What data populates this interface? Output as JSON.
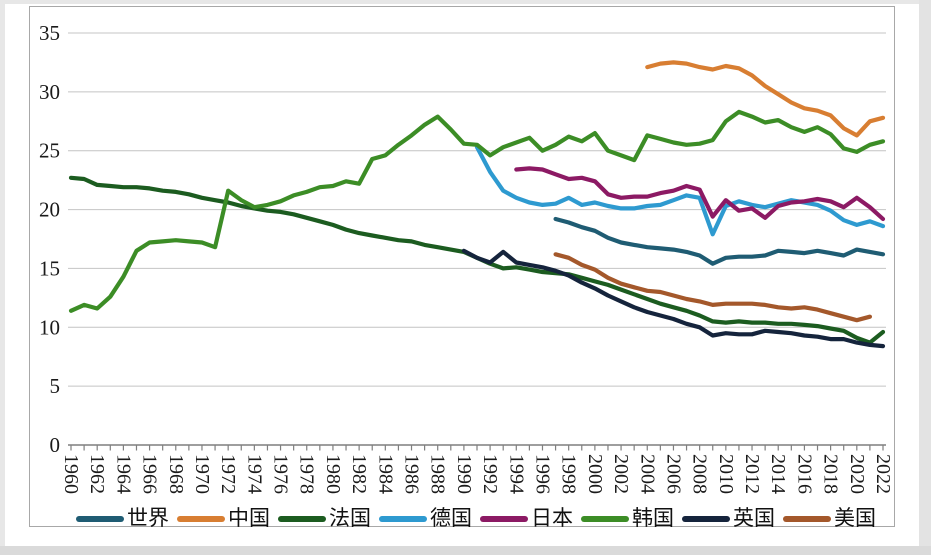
{
  "chart_data": {
    "type": "line",
    "title": "",
    "xlabel": "",
    "ylabel": "",
    "ylim": [
      0,
      35
    ],
    "ytick_step": 5,
    "yticks": [
      0,
      5,
      10,
      15,
      20,
      25,
      30,
      35
    ],
    "x_range": [
      1960,
      2022
    ],
    "xtick_labels": [
      "1960",
      "1962",
      "1964",
      "1966",
      "1968",
      "1970",
      "1972",
      "1974",
      "1976",
      "1978",
      "1980",
      "1982",
      "1984",
      "1986",
      "1988",
      "1990",
      "1992",
      "1994",
      "1996",
      "1998",
      "2000",
      "2002",
      "2004",
      "2006",
      "2008",
      "2010",
      "2012",
      "2014",
      "2016",
      "2018",
      "2020",
      "2022"
    ],
    "grid": "horizontal",
    "legend_position": "bottom",
    "colors": {
      "axis": "#7f7f7f",
      "gridline": "#c4c4c4",
      "tick_text": "#1a1a1a",
      "frame_border": "#a8a8a8"
    },
    "series": [
      {
        "id": "world",
        "name": "世界",
        "color": "#1F5C73",
        "start_year": 1997,
        "values": [
          19.2,
          18.9,
          18.5,
          18.2,
          17.6,
          17.2,
          17.0,
          16.8,
          16.7,
          16.6,
          16.4,
          16.1,
          15.4,
          15.9,
          16.0,
          16.0,
          16.1,
          16.5,
          16.4,
          16.3,
          16.5,
          16.3,
          16.1,
          16.6,
          16.4,
          16.2
        ]
      },
      {
        "id": "china",
        "name": "中国",
        "color": "#D87E32",
        "start_year": 2004,
        "values": [
          32.1,
          32.4,
          32.5,
          32.4,
          32.1,
          31.9,
          32.2,
          32.0,
          31.4,
          30.5,
          29.8,
          29.1,
          28.6,
          28.4,
          28.0,
          26.9,
          26.3,
          27.5,
          27.8
        ]
      },
      {
        "id": "france",
        "name": "法国",
        "color": "#1C5C20",
        "start_year": 1960,
        "values": [
          22.7,
          22.6,
          22.1,
          22.0,
          21.9,
          21.9,
          21.8,
          21.6,
          21.5,
          21.3,
          21.0,
          20.8,
          20.6,
          20.3,
          20.1,
          19.9,
          19.8,
          19.6,
          19.3,
          19.0,
          18.7,
          18.3,
          18.0,
          17.8,
          17.6,
          17.4,
          17.3,
          17.0,
          16.8,
          16.6,
          16.4,
          15.9,
          15.4,
          15.0,
          15.1,
          14.9,
          14.7,
          14.6,
          14.5,
          14.2,
          13.9,
          13.6,
          13.2,
          12.8,
          12.4,
          12.0,
          11.7,
          11.4,
          11.0,
          10.5,
          10.4,
          10.5,
          10.4,
          10.4,
          10.3,
          10.3,
          10.2,
          10.1,
          9.9,
          9.7,
          9.1,
          8.7,
          9.6
        ]
      },
      {
        "id": "germany",
        "name": "德国",
        "color": "#2E9AD0",
        "start_year": 1991,
        "values": [
          25.3,
          23.2,
          21.6,
          21.0,
          20.6,
          20.4,
          20.5,
          21.0,
          20.4,
          20.6,
          20.3,
          20.1,
          20.1,
          20.3,
          20.4,
          20.8,
          21.2,
          21.0,
          17.9,
          20.3,
          20.7,
          20.4,
          20.2,
          20.5,
          20.8,
          20.6,
          20.4,
          19.9,
          19.1,
          18.7,
          19.0,
          18.6
        ]
      },
      {
        "id": "japan",
        "name": "日本",
        "color": "#8C1A64",
        "start_year": 1994,
        "values": [
          23.4,
          23.5,
          23.4,
          23.0,
          22.6,
          22.7,
          22.4,
          21.3,
          21.0,
          21.1,
          21.1,
          21.4,
          21.6,
          22.0,
          21.7,
          19.4,
          20.8,
          19.9,
          20.1,
          19.3,
          20.3,
          20.6,
          20.7,
          20.9,
          20.7,
          20.2,
          21.0,
          20.2,
          19.2
        ]
      },
      {
        "id": "korea",
        "name": "韩国",
        "color": "#3C8D26",
        "start_year": 1960,
        "values": [
          11.4,
          11.9,
          11.6,
          12.6,
          14.3,
          16.5,
          17.2,
          17.3,
          17.4,
          17.3,
          17.2,
          16.8,
          21.6,
          20.8,
          20.2,
          20.4,
          20.7,
          21.2,
          21.5,
          21.9,
          22.0,
          22.4,
          22.2,
          24.3,
          24.6,
          25.5,
          26.3,
          27.2,
          27.9,
          26.8,
          25.6,
          25.5,
          24.6,
          25.3,
          25.7,
          26.1,
          25.0,
          25.5,
          26.2,
          25.8,
          26.5,
          25.0,
          24.6,
          24.2,
          26.3,
          26.0,
          25.7,
          25.5,
          25.6,
          25.9,
          27.5,
          28.3,
          27.9,
          27.4,
          27.6,
          27.0,
          26.6,
          27.0,
          26.4,
          25.2,
          24.9,
          25.5,
          25.8
        ]
      },
      {
        "id": "uk",
        "name": "英国",
        "color": "#15243C",
        "start_year": 1990,
        "values": [
          16.5,
          15.9,
          15.5,
          16.4,
          15.5,
          15.3,
          15.1,
          14.8,
          14.4,
          13.8,
          13.3,
          12.7,
          12.2,
          11.7,
          11.3,
          11.0,
          10.7,
          10.3,
          10.0,
          9.3,
          9.5,
          9.4,
          9.4,
          9.7,
          9.6,
          9.5,
          9.3,
          9.2,
          9.0,
          9.0,
          8.7,
          8.5,
          8.4
        ]
      },
      {
        "id": "usa",
        "name": "美国",
        "color": "#A4582B",
        "start_year": 1997,
        "values": [
          16.2,
          15.9,
          15.3,
          14.9,
          14.2,
          13.7,
          13.4,
          13.1,
          13.0,
          12.7,
          12.4,
          12.2,
          11.9,
          12.0,
          12.0,
          12.0,
          11.9,
          11.7,
          11.6,
          11.7,
          11.5,
          11.2,
          10.9,
          10.6,
          10.9
        ]
      }
    ]
  }
}
